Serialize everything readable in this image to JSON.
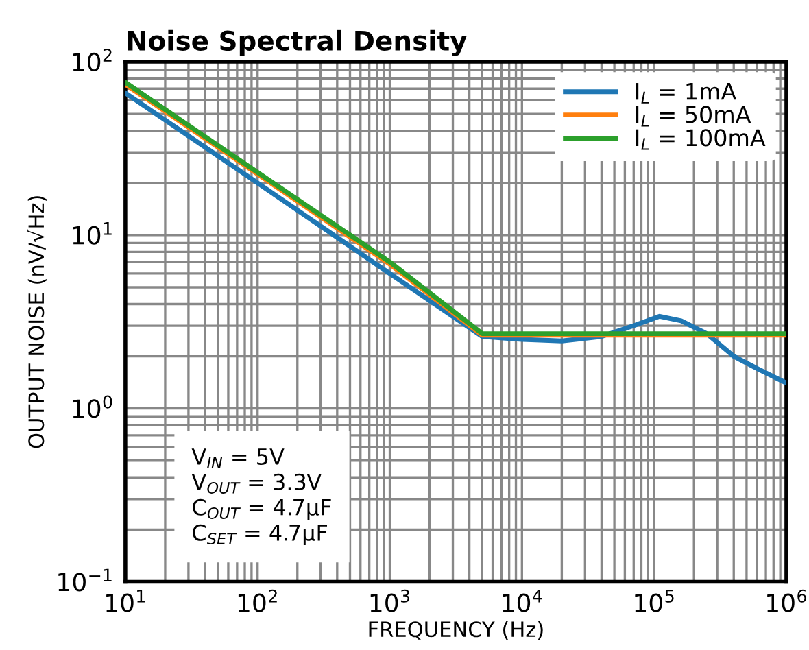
{
  "chart_data": {
    "type": "line",
    "title": "Noise Spectral Density",
    "xlabel": "FREQUENCY (Hz)",
    "ylabel": "OUTPUT NOISE (nV/√Hz)",
    "log": "xy",
    "grid": true,
    "legend": "top right",
    "line_style": "solid",
    "xlim": [
      10,
      1000000
    ],
    "ylim": [
      0.1,
      100
    ],
    "xticks": [
      {
        "value": 10,
        "label": "10$^{1}$"
      },
      {
        "value": 100,
        "label": "10$^{2}$"
      },
      {
        "value": 1000,
        "label": "10$^{3}$"
      },
      {
        "value": 10000,
        "label": "10$^{4}$"
      },
      {
        "value": 100000,
        "label": "10$^{5}$"
      },
      {
        "value": 1000000,
        "label": "10$^{6}$"
      }
    ],
    "yticks": [
      {
        "value": 0.1,
        "label": "10$^{−1}$"
      },
      {
        "value": 1,
        "label": "10$^{0}$"
      },
      {
        "value": 10,
        "label": "10$^{1}$"
      },
      {
        "value": 100,
        "label": "10$^{2}$"
      }
    ],
    "series": [
      {
        "name": "I$_{L}$ = 1mA",
        "color": "#1f77b4",
        "x": [
          10,
          100,
          1000,
          5000,
          10000,
          20000,
          40000,
          70000,
          110000,
          160000,
          250000,
          400000,
          600000,
          1000000
        ],
        "values": [
          66,
          20,
          6.0,
          2.6,
          2.5,
          2.45,
          2.6,
          3.0,
          3.4,
          3.2,
          2.7,
          2.0,
          1.7,
          1.4
        ]
      },
      {
        "name": "I$_{L}$ = 50mA",
        "color": "#ff7f0e",
        "x": [
          10,
          100,
          1000,
          5000,
          1000000
        ],
        "values": [
          74,
          22.5,
          6.8,
          2.65,
          2.65
        ]
      },
      {
        "name": "I$_{L}$ = 100mA",
        "color": "#2ca02c",
        "x": [
          10,
          100,
          1000,
          5000,
          1000000
        ],
        "values": [
          76,
          23,
          7.0,
          2.7,
          2.7
        ]
      }
    ],
    "annotations": [
      "V$_{IN}$ = 5V\nV$_{OUT}$ = 3.3V\nC$_{OUT}$ = 4.7μF\nC$_{SET}$ = 4.7μF"
    ]
  }
}
